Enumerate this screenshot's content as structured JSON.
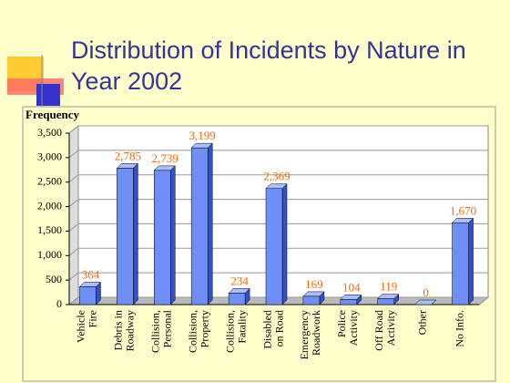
{
  "chart_data": {
    "type": "bar",
    "title": "Distribution of Incidents by Nature in Year 2002",
    "y_label": "Frequency",
    "categories": [
      [
        "Vehicle",
        "Fire"
      ],
      [
        "Debris in",
        "Roadway"
      ],
      [
        "Collision,",
        "Personal"
      ],
      [
        "Collision,",
        "Property"
      ],
      [
        "Collision,",
        "Fatality"
      ],
      [
        "Disabled",
        "on Road"
      ],
      [
        "Emergency",
        "Roadwork"
      ],
      [
        "Police",
        "Activity"
      ],
      [
        "Off Road",
        "Activity"
      ],
      [
        "Other"
      ],
      [
        "No Info."
      ]
    ],
    "values": [
      364,
      2785,
      2739,
      3199,
      234,
      2369,
      169,
      104,
      119,
      0,
      1670
    ],
    "value_labels": [
      "364",
      "2,785",
      "2,739",
      "3,199",
      "234",
      "2,369",
      "169",
      "104",
      "119",
      "0",
      "1,670"
    ],
    "color": "#6f8ff7",
    "ylim": [
      0,
      3500
    ],
    "yticks": [
      0,
      500,
      {
        "value": 1000,
        "label": "1,000"
      },
      {
        "value": 1500,
        "label": "1,500"
      },
      {
        "value": 2000,
        "label": "2,000"
      },
      {
        "value": 2500,
        "label": "2,500"
      },
      {
        "value": 3000,
        "label": "3,000"
      },
      {
        "value": 3500,
        "label": "3,500"
      }
    ],
    "grid": true
  }
}
